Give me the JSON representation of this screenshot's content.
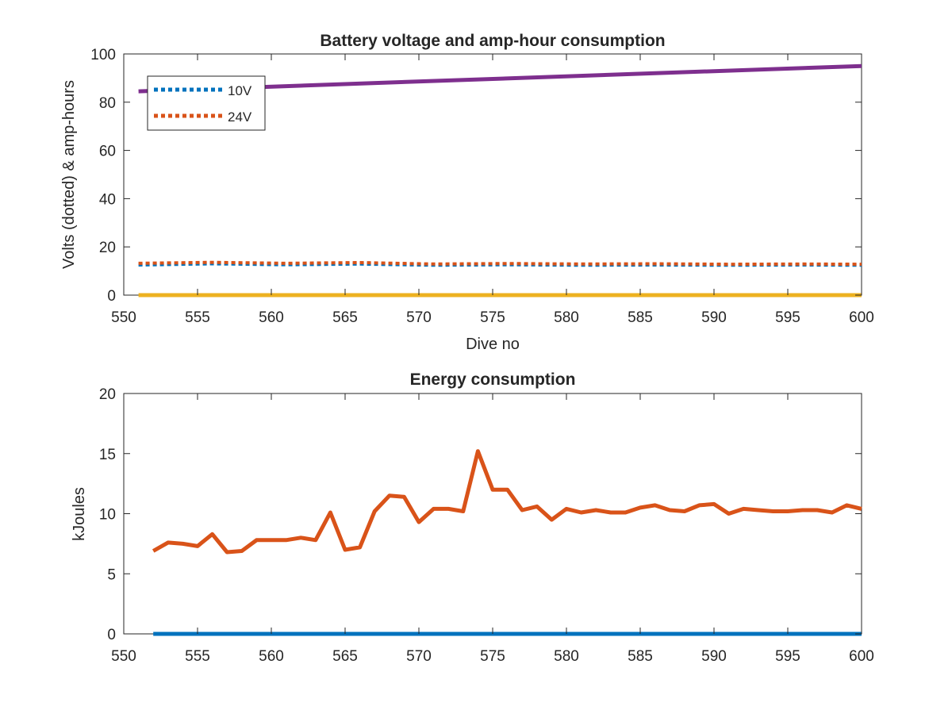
{
  "chart_data": [
    {
      "type": "line",
      "title": "Battery voltage and amp-hour consumption",
      "xlabel": "Dive no",
      "ylabel": "Volts (dotted) & amp-hours",
      "xlim": [
        550,
        600
      ],
      "ylim": [
        0,
        100
      ],
      "xticks": [
        550,
        555,
        560,
        565,
        570,
        575,
        580,
        585,
        590,
        595,
        600
      ],
      "yticks": [
        0,
        20,
        40,
        60,
        80,
        100
      ],
      "grid": false,
      "legend_position": "top-left",
      "series": [
        {
          "name": "10V",
          "style": "dotted",
          "color": "#0072BD",
          "x": [
            551,
            556,
            561,
            566,
            571,
            576,
            581,
            586,
            591,
            596,
            600
          ],
          "y": [
            12.5,
            13.0,
            12.6,
            12.9,
            12.4,
            12.6,
            12.4,
            12.5,
            12.4,
            12.5,
            12.4
          ]
        },
        {
          "name": "24V",
          "style": "dotted",
          "color": "#D95319",
          "x": [
            551,
            556,
            561,
            566,
            571,
            576,
            581,
            586,
            591,
            596,
            600
          ],
          "y": [
            13.2,
            13.6,
            13.2,
            13.5,
            12.9,
            13.1,
            12.9,
            13.0,
            12.8,
            12.9,
            12.8
          ]
        },
        {
          "style": "solid",
          "color": "#EDB120",
          "x": [
            551,
            600
          ],
          "y": [
            0,
            0
          ]
        },
        {
          "style": "solid",
          "color": "#7E2F8E",
          "x": [
            551,
            600
          ],
          "y": [
            84.5,
            95
          ]
        }
      ]
    },
    {
      "type": "line",
      "title": "Energy consumption",
      "xlabel": "",
      "ylabel": "kJoules",
      "xlim": [
        550,
        600
      ],
      "ylim": [
        0,
        20
      ],
      "xticks": [
        550,
        555,
        560,
        565,
        570,
        575,
        580,
        585,
        590,
        595,
        600
      ],
      "yticks": [
        0,
        5,
        10,
        15,
        20
      ],
      "grid": false,
      "series": [
        {
          "style": "solid",
          "color": "#0072BD",
          "x": [
            552,
            600
          ],
          "y": [
            0,
            0
          ]
        },
        {
          "style": "solid",
          "color": "#D95319",
          "x": [
            552,
            553,
            554,
            555,
            556,
            557,
            558,
            559,
            560,
            561,
            562,
            563,
            564,
            565,
            566,
            567,
            568,
            569,
            570,
            571,
            572,
            573,
            574,
            575,
            576,
            577,
            578,
            579,
            580,
            581,
            582,
            583,
            584,
            585,
            586,
            587,
            588,
            589,
            590,
            591,
            592,
            593,
            594,
            595,
            596,
            597,
            598,
            599,
            600
          ],
          "y": [
            6.9,
            7.6,
            7.5,
            7.3,
            8.3,
            6.8,
            6.9,
            7.8,
            7.8,
            7.8,
            8.0,
            7.8,
            10.1,
            7.0,
            7.2,
            10.2,
            11.5,
            11.4,
            9.3,
            10.4,
            10.4,
            10.2,
            15.2,
            12.0,
            12.0,
            10.3,
            10.6,
            9.5,
            10.4,
            10.1,
            10.3,
            10.1,
            10.1,
            10.5,
            10.7,
            10.3,
            10.2,
            10.7,
            10.8,
            10.0,
            10.4,
            10.3,
            10.2,
            10.2,
            10.3,
            10.3,
            10.1,
            10.7,
            10.4
          ]
        }
      ]
    }
  ]
}
